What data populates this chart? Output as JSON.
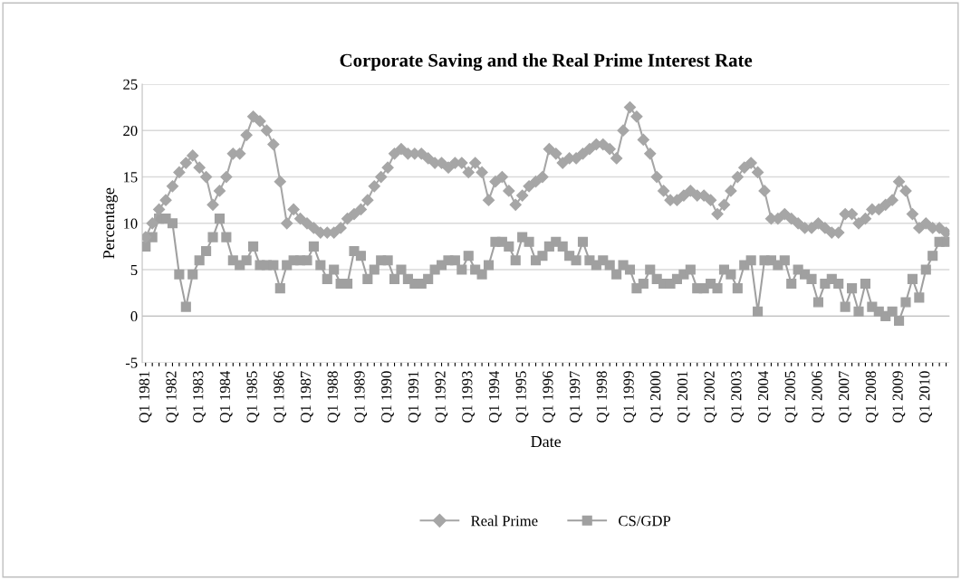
{
  "chart_data": {
    "type": "line",
    "title": "Corporate Saving and the Real Prime Interest Rate",
    "xlabel": "Date",
    "ylabel": "Percentage",
    "categories": [
      "Q1 1981",
      null,
      null,
      null,
      "Q1 1982",
      null,
      null,
      null,
      "Q1 1983",
      null,
      null,
      null,
      "Q1 1984",
      null,
      null,
      null,
      "Q1 1985",
      null,
      null,
      null,
      "Q1 1986",
      null,
      null,
      null,
      "Q1 1987",
      null,
      null,
      null,
      "Q1 1988",
      null,
      null,
      null,
      "Q1 1989",
      null,
      null,
      null,
      "Q1 1990",
      null,
      null,
      null,
      "Q1 1991",
      null,
      null,
      null,
      "Q1 1992",
      null,
      null,
      null,
      "Q1 1993",
      null,
      null,
      null,
      "Q1 1994",
      null,
      null,
      null,
      "Q1 1995",
      null,
      null,
      null,
      "Q1 1996",
      null,
      null,
      null,
      "Q1 1997",
      null,
      null,
      null,
      "Q1 1998",
      null,
      null,
      null,
      "Q1 1999",
      null,
      null,
      null,
      "Q1 2000",
      null,
      null,
      null,
      "Q1 2001",
      null,
      null,
      null,
      "Q1 2002",
      null,
      null,
      null,
      "Q1 2003",
      null,
      null,
      null,
      "Q1 2004",
      null,
      null,
      null,
      "Q1 2005",
      null,
      null,
      null,
      "Q1 2006",
      null,
      null,
      null,
      "Q1 2007",
      null,
      null,
      null,
      "Q1 2008",
      null,
      null,
      null,
      "Q1 2009",
      null,
      null,
      null,
      "Q1 2010",
      null,
      null,
      null
    ],
    "series": [
      {
        "name": "Real Prime",
        "color": "#a6a6a6",
        "marker": "diamond",
        "values": [
          8.5,
          10,
          11.5,
          12.5,
          14,
          15.5,
          16.5,
          17.3,
          16,
          15,
          12,
          13.5,
          15,
          17.5,
          17.5,
          19.5,
          21.5,
          21,
          20,
          18.5,
          14.5,
          10,
          11.5,
          10.5,
          10,
          9.5,
          9,
          9,
          9,
          9.5,
          10.5,
          11,
          11.5,
          12.5,
          14,
          15,
          16,
          17.5,
          18,
          17.5,
          17.5,
          17.5,
          17,
          16.5,
          16.5,
          16,
          16.5,
          16.5,
          15.5,
          16.5,
          15.5,
          12.5,
          14.5,
          15,
          13.5,
          12,
          13,
          14,
          14.5,
          15,
          18,
          17.5,
          16.5,
          17,
          17,
          17.5,
          18,
          18.5,
          18.5,
          18,
          17,
          20,
          22.5,
          21.5,
          19,
          17.5,
          15,
          13.5,
          12.5,
          12.5,
          13,
          13.5,
          13,
          13,
          12.5,
          11,
          12,
          13.5,
          15,
          16,
          16.5,
          15.5,
          13.5,
          10.5,
          10.5,
          11,
          10.5,
          10,
          9.5,
          9.5,
          10,
          9.5,
          9,
          9,
          11,
          11,
          10,
          10.5,
          11.5,
          11.5,
          12,
          12.5,
          14.5,
          13.5,
          11,
          9.5,
          10,
          9.5,
          9.5,
          9
        ]
      },
      {
        "name": "CS/GDP",
        "color": "#a0a0a0",
        "marker": "square",
        "values": [
          7.5,
          8.5,
          10.5,
          10.5,
          10,
          4.5,
          1,
          4.5,
          6,
          7,
          8.5,
          10.5,
          8.5,
          6,
          5.5,
          6,
          7.5,
          5.5,
          5.5,
          5.5,
          3,
          5.5,
          6,
          6,
          6,
          7.5,
          5.5,
          4,
          5,
          3.5,
          3.5,
          7,
          6.5,
          4,
          5,
          6,
          6,
          4,
          5,
          4,
          3.5,
          3.5,
          4,
          5,
          5.5,
          6,
          6,
          5,
          6.5,
          5,
          4.5,
          5.5,
          8,
          8,
          7.5,
          6,
          8.5,
          8,
          6,
          6.5,
          7.5,
          8,
          7.5,
          6.5,
          6,
          8,
          6,
          5.5,
          6,
          5.5,
          4.5,
          5.5,
          5,
          3,
          3.5,
          5,
          4,
          3.5,
          3.5,
          4,
          4.5,
          5,
          3,
          3,
          3.5,
          3,
          5,
          4.5,
          3,
          5.5,
          6,
          0.5,
          6,
          6,
          5.5,
          6,
          3.5,
          5,
          4.5,
          4,
          1.5,
          3.5,
          4,
          3.5,
          1,
          3,
          0.5,
          3.5,
          1,
          0.5,
          0,
          0.5,
          -0.5,
          1.5,
          4,
          2,
          5,
          6.5,
          8,
          8
        ]
      }
    ],
    "ylim": [
      -5,
      25
    ],
    "yticks": [
      -5,
      0,
      5,
      10,
      15,
      20,
      25
    ],
    "grid": "y",
    "legend": "bottom",
    "line_style": "solid"
  }
}
